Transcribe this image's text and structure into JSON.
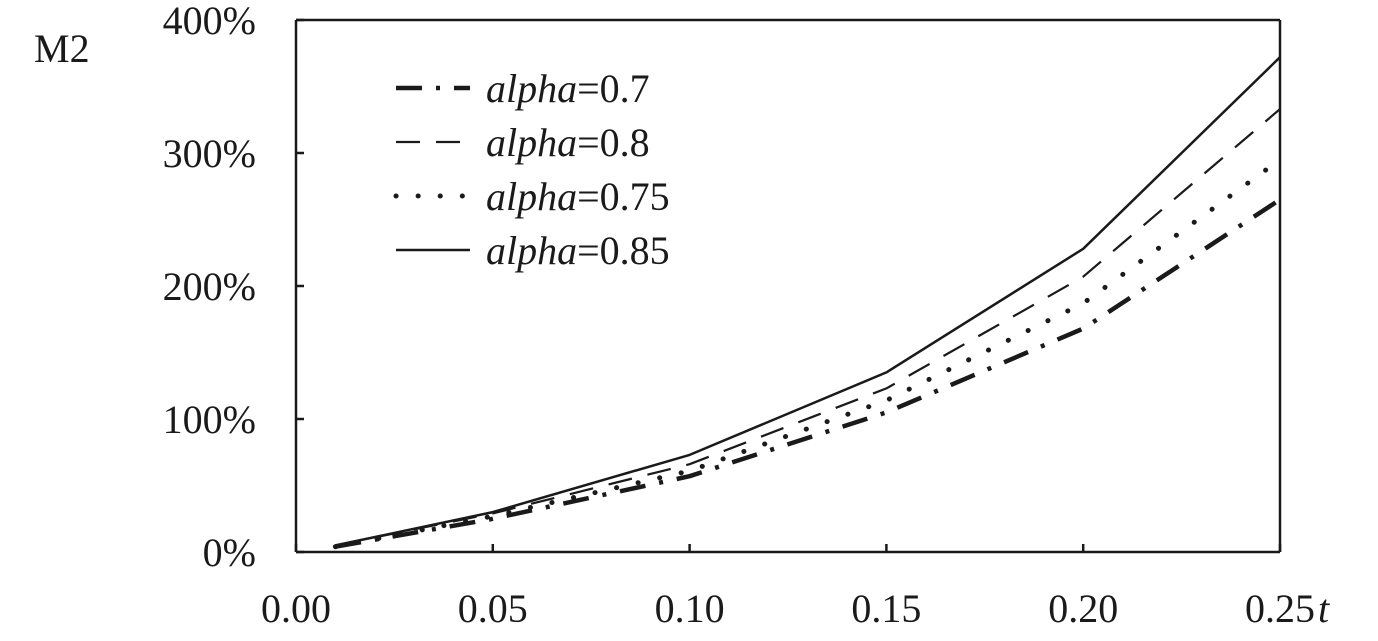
{
  "chart_data": {
    "type": "line",
    "title": "",
    "xlabel": "t",
    "ylabel": "M2",
    "x_ticks": [
      "0.00",
      "0.05",
      "0.10",
      "0.15",
      "0.20",
      "0.25"
    ],
    "y_ticks": [
      "0%",
      "100%",
      "200%",
      "300%",
      "400%"
    ],
    "xlim": [
      0.0,
      0.25
    ],
    "ylim": [
      0,
      400
    ],
    "grid": false,
    "legend_position": "top-left",
    "x": [
      0.01,
      0.05,
      0.1,
      0.15,
      0.2,
      0.25
    ],
    "series": [
      {
        "name_prefix": "alpha",
        "name_suffix": "=0.7",
        "style": "dash-dot-thick",
        "values": [
          4,
          25,
          57,
          105,
          168,
          265
        ]
      },
      {
        "name_prefix": "alpha",
        "name_suffix": "=0.8",
        "style": "dashed",
        "values": [
          5,
          29,
          66,
          123,
          207,
          333
        ]
      },
      {
        "name_prefix": "alpha",
        "name_suffix": "=0.75",
        "style": "dotted",
        "values": [
          4,
          27,
          61,
          114,
          187,
          295
        ]
      },
      {
        "name_prefix": "alpha",
        "name_suffix": "=0.85",
        "style": "solid",
        "values": [
          5,
          30,
          73,
          135,
          228,
          372
        ]
      }
    ],
    "color": "#1a1a1a"
  }
}
